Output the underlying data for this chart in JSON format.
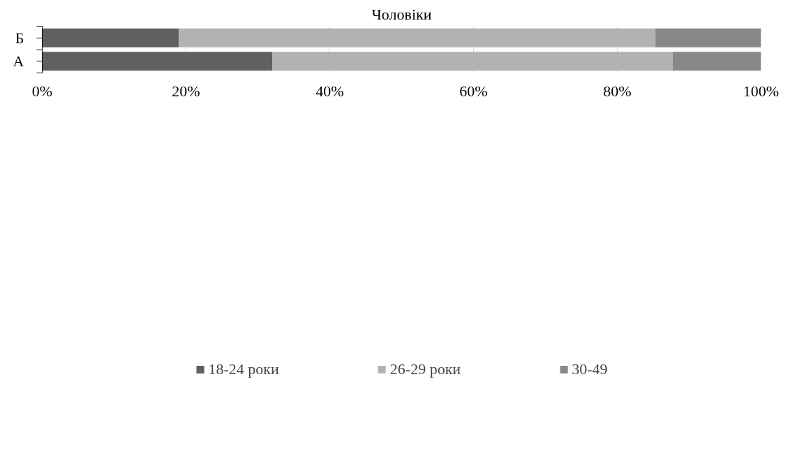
{
  "chart_data": {
    "type": "bar",
    "orientation": "horizontal",
    "stacked": true,
    "title": "Чоловіки",
    "categories": [
      "Б",
      "А"
    ],
    "series": [
      {
        "name": "18-24 роки",
        "color": "#606060",
        "values": [
          19,
          32
        ]
      },
      {
        "name": "26-29 роки",
        "color": "#b2b2b2",
        "values": [
          66.3,
          55.7
        ]
      },
      {
        "name": "30-49",
        "color": "#888888",
        "values": [
          14.7,
          12.3
        ]
      }
    ],
    "xlim": [
      0,
      100
    ],
    "xticks": [
      {
        "value": 0,
        "label": "0%"
      },
      {
        "value": 20,
        "label": "20%"
      },
      {
        "value": 40,
        "label": "40%"
      },
      {
        "value": 60,
        "label": "60%"
      },
      {
        "value": 80,
        "label": "80%"
      },
      {
        "value": 100,
        "label": "100%"
      }
    ],
    "grid": "x",
    "legend": "bottom"
  }
}
